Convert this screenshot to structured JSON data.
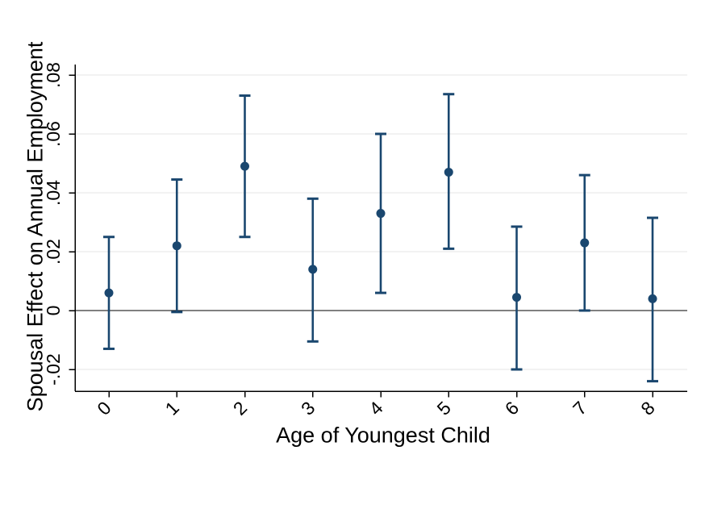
{
  "figure": {
    "background_color": "#ffffff",
    "text_color": "#000000"
  },
  "chart_data": {
    "type": "scatter",
    "subtype": "point-estimates-with-confidence-intervals",
    "title": "",
    "xlabel": "Age of Youngest Child",
    "ylabel": "Spousal Effect on Annual Employment",
    "categories": [
      "0",
      "1",
      "2",
      "3",
      "4",
      "5",
      "6",
      "7",
      "8"
    ],
    "series": [
      {
        "name": "estimate",
        "values": [
          0.006,
          0.022,
          0.049,
          0.014,
          0.033,
          0.047,
          0.0045,
          0.023,
          0.004
        ]
      },
      {
        "name": "ci_lower",
        "values": [
          -0.013,
          -0.0005,
          0.025,
          -0.0105,
          0.006,
          0.021,
          -0.02,
          0.0,
          -0.024
        ]
      },
      {
        "name": "ci_upper",
        "values": [
          0.025,
          0.0445,
          0.073,
          0.038,
          0.06,
          0.0735,
          0.0285,
          0.046,
          0.0315
        ]
      }
    ],
    "yticks": [
      -0.02,
      0,
      0.02,
      0.04,
      0.06,
      0.08
    ],
    "ytick_labels": [
      "-.02",
      "0",
      ".02",
      ".04",
      ".06",
      ".08"
    ],
    "ylim": [
      -0.027,
      0.0835
    ],
    "grid": true,
    "zero_line": true,
    "legend_position": "none",
    "marker_color": "#1a476f",
    "errorbar_color": "#1a476f",
    "grid_color": "#e4e4e4",
    "axis_color": "#000000"
  }
}
